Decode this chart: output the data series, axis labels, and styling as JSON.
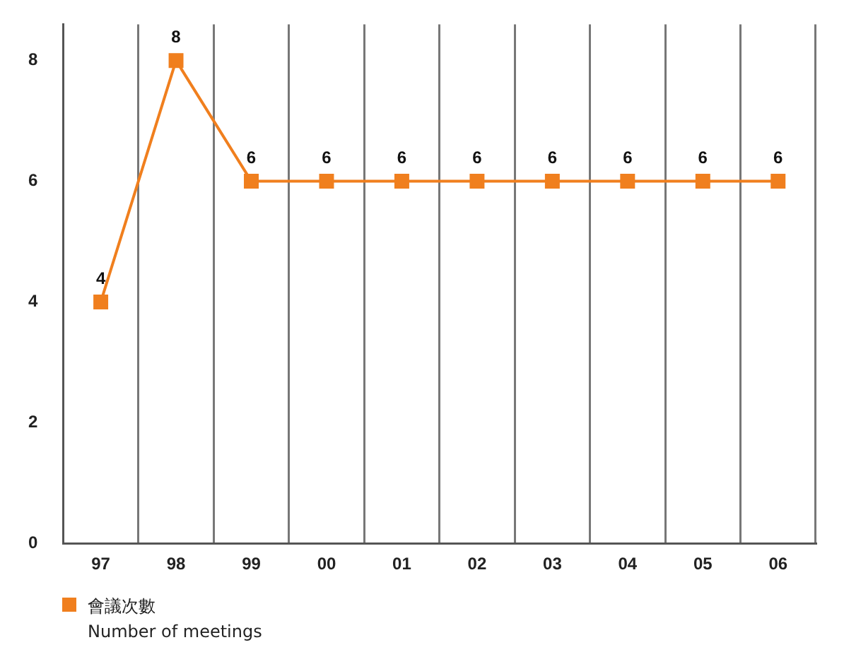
{
  "chart_data": {
    "type": "line",
    "categories": [
      "97",
      "98",
      "99",
      "00",
      "01",
      "02",
      "03",
      "04",
      "05",
      "06"
    ],
    "series": [
      {
        "name": "會議次數\nNumber of meetings",
        "color": "#f07f1e",
        "values": [
          4,
          8,
          6,
          6,
          6,
          6,
          6,
          6,
          6,
          6
        ]
      }
    ],
    "ylim": [
      0,
      8.6
    ],
    "yticks": [
      0,
      2,
      4,
      6,
      8
    ],
    "grid": "x",
    "legend": "bottom left",
    "marker": "square",
    "data_labels": true
  }
}
